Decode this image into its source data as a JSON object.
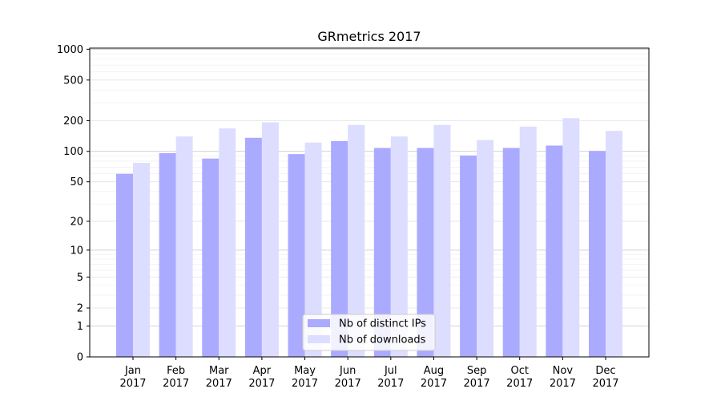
{
  "chart_data": {
    "type": "bar",
    "title": "GRmetrics 2017",
    "xlabel": "",
    "ylabel": "",
    "yscale": "log1p",
    "ylim": [
      0,
      1000
    ],
    "yticks": [
      0,
      1,
      2,
      5,
      10,
      20,
      50,
      100,
      200,
      500,
      1000
    ],
    "grid": true,
    "legend_position": "bottom-center",
    "categories": [
      "Jan\n2017",
      "Feb\n2017",
      "Mar\n2017",
      "Apr\n2017",
      "May\n2017",
      "Jun\n2017",
      "Jul\n2017",
      "Aug\n2017",
      "Sep\n2017",
      "Oct\n2017",
      "Nov\n2017",
      "Dec\n2017"
    ],
    "series": [
      {
        "name": "Nb of distinct IPs",
        "color": "#aaaaff",
        "values": [
          60,
          96,
          85,
          136,
          94,
          126,
          108,
          108,
          91,
          108,
          114,
          101
        ]
      },
      {
        "name": "Nb of downloads",
        "color": "#ddddff",
        "values": [
          77,
          140,
          168,
          193,
          122,
          182,
          140,
          182,
          129,
          175,
          212,
          159
        ]
      }
    ]
  }
}
